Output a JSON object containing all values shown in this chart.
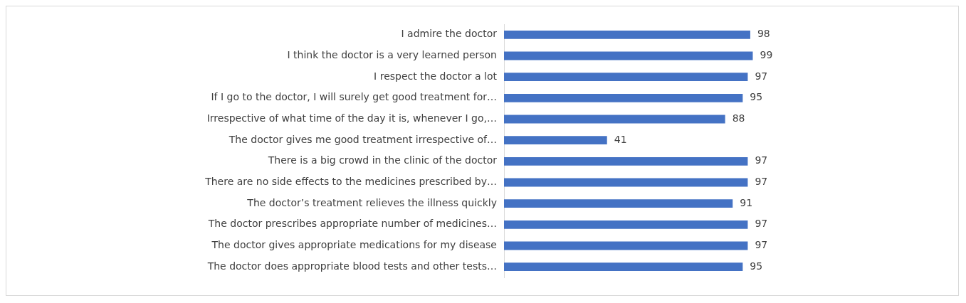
{
  "chart_data": {
    "type": "bar",
    "orientation": "horizontal",
    "categories": [
      "I admire the doctor",
      "I think the doctor is a very learned person",
      "I respect the doctor a lot",
      "If I go to the doctor, I will surely get good treatment for…",
      "Irrespective of what time of the day it is, whenever I go,…",
      "The doctor gives me good treatment irrespective of…",
      "There is a big crowd in the clinic of the doctor",
      "There are no side effects to the medicines prescribed by…",
      "The doctor’s treatment relieves the illness quickly",
      "The doctor prescribes appropriate number of medicines…",
      "The doctor gives appropriate medications for my disease",
      "The doctor does appropriate blood tests and other tests…"
    ],
    "values": [
      98,
      99,
      97,
      95,
      88,
      41,
      97,
      97,
      91,
      97,
      97,
      95
    ],
    "color": "#4472c4",
    "data_labels": true,
    "legend": false
  }
}
